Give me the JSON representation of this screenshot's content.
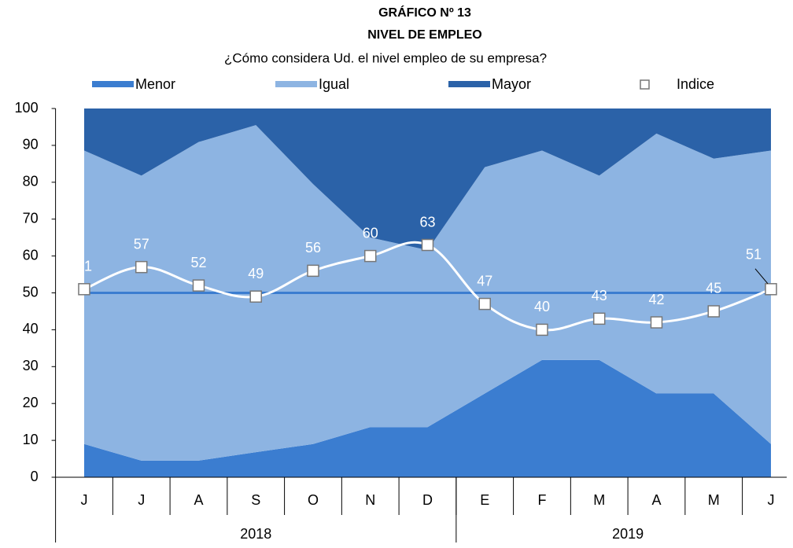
{
  "chart_data": {
    "type": "stacked-area-line",
    "title": "GRÁFICO Nº 13",
    "subtitle": "NIVEL DE EMPLEO",
    "question": "¿Cómo considera Ud. el nivel empleo de su empresa?",
    "categories": [
      "J",
      "J",
      "A",
      "S",
      "O",
      "N",
      "D",
      "E",
      "F",
      "M",
      "A",
      "M",
      "J"
    ],
    "x_groups": [
      {
        "label": "2018",
        "start": 0,
        "end": 6
      },
      {
        "label": "2019",
        "start": 7,
        "end": 12
      }
    ],
    "series": [
      {
        "name": "Menor",
        "color": "#3b7dd0",
        "values": [
          9,
          4.5,
          4.5,
          6.8,
          9,
          13.6,
          13.6,
          22.7,
          31.8,
          31.8,
          22.7,
          22.7,
          9
        ]
      },
      {
        "name": "Igual",
        "color": "#8db4e2",
        "values": [
          79.6,
          77.3,
          86.4,
          88.7,
          70.5,
          51.4,
          48,
          61.4,
          56.8,
          50,
          70.5,
          63.7,
          79.6
        ]
      },
      {
        "name": "Mayor",
        "color": "#2b62a8",
        "values": [
          11.4,
          18.2,
          9.1,
          4.5,
          20.5,
          35,
          38.4,
          15.9,
          11.4,
          18.2,
          6.8,
          13.6,
          11.4
        ]
      }
    ],
    "index_series": {
      "name": "Indice",
      "color": "#ffffff",
      "values": [
        51,
        57,
        52,
        49,
        56,
        60,
        63,
        47,
        40,
        43,
        42,
        45,
        51
      ]
    },
    "reference_line": {
      "value": 50,
      "color": "#3b7dd0"
    },
    "ylim": [
      0,
      100
    ],
    "yticks": [
      0,
      10,
      20,
      30,
      40,
      50,
      60,
      70,
      80,
      90,
      100
    ]
  }
}
